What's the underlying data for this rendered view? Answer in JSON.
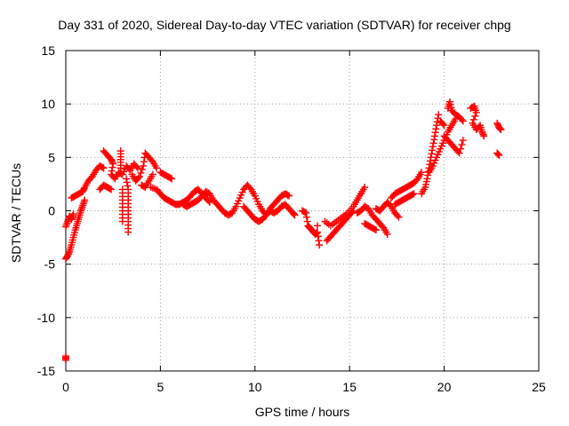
{
  "chart_data": {
    "type": "scatter",
    "title": "Day 331 of 2020, Sidereal Day-to-day VTEC variation (SDTVAR) for receiver chpg",
    "xlabel": "GPS time / hours",
    "ylabel": "SDTVAR / TECUs",
    "xlim": [
      0,
      25
    ],
    "ylim": [
      -15,
      15
    ],
    "xticks": [
      0,
      5,
      10,
      15,
      20,
      25
    ],
    "yticks": [
      -15,
      -10,
      -5,
      0,
      5,
      10,
      15
    ],
    "grid": true,
    "marker": "+",
    "color": "#ff0000",
    "series": [
      {
        "name": "SDTVAR",
        "points": [
          [
            0.0,
            -13.6
          ],
          [
            0.0,
            -14.0
          ],
          [
            0.0,
            -1.5
          ],
          [
            0.1,
            -1.0
          ],
          [
            0.2,
            -0.5
          ],
          [
            0.3,
            -0.8
          ],
          [
            0.4,
            -0.3
          ],
          [
            0.0,
            -4.5
          ],
          [
            0.1,
            -4.2
          ],
          [
            0.2,
            -3.8
          ],
          [
            0.3,
            -3.2
          ],
          [
            0.4,
            -2.5
          ],
          [
            0.5,
            -1.8
          ],
          [
            0.6,
            -1.2
          ],
          [
            0.7,
            -0.6
          ],
          [
            0.8,
            0.0
          ],
          [
            0.9,
            0.5
          ],
          [
            1.0,
            1.0
          ],
          [
            0.3,
            1.2
          ],
          [
            0.5,
            1.4
          ],
          [
            0.7,
            1.6
          ],
          [
            0.9,
            1.8
          ],
          [
            1.0,
            2.2
          ],
          [
            1.2,
            2.8
          ],
          [
            1.4,
            3.2
          ],
          [
            1.6,
            3.8
          ],
          [
            1.8,
            4.2
          ],
          [
            2.0,
            4.0
          ],
          [
            1.8,
            2.0
          ],
          [
            2.0,
            2.4
          ],
          [
            2.2,
            2.2
          ],
          [
            2.4,
            2.0
          ],
          [
            2.0,
            5.6
          ],
          [
            2.2,
            5.2
          ],
          [
            2.4,
            4.8
          ],
          [
            2.5,
            4.4
          ],
          [
            2.4,
            3.4
          ],
          [
            2.6,
            3.0
          ],
          [
            2.8,
            3.6
          ],
          [
            3.0,
            3.4
          ],
          [
            3.2,
            4.2
          ],
          [
            3.4,
            3.8
          ],
          [
            3.6,
            4.4
          ],
          [
            3.8,
            4.0
          ],
          [
            2.9,
            5.6
          ],
          [
            2.9,
            4.8
          ],
          [
            2.9,
            4.0
          ],
          [
            3.0,
            2.0
          ],
          [
            3.0,
            1.0
          ],
          [
            3.0,
            0.0
          ],
          [
            3.0,
            -1.0
          ],
          [
            3.2,
            3.0
          ],
          [
            3.3,
            2.0
          ],
          [
            3.3,
            1.0
          ],
          [
            3.3,
            0.0
          ],
          [
            3.3,
            -1.0
          ],
          [
            3.3,
            -2.0
          ],
          [
            3.5,
            3.4
          ],
          [
            3.7,
            2.8
          ],
          [
            3.9,
            3.2
          ],
          [
            4.1,
            4.2
          ],
          [
            4.2,
            5.4
          ],
          [
            4.4,
            5.0
          ],
          [
            4.6,
            4.6
          ],
          [
            4.8,
            4.0
          ],
          [
            4.0,
            2.4
          ],
          [
            4.2,
            2.2
          ],
          [
            4.4,
            2.8
          ],
          [
            4.6,
            3.4
          ],
          [
            5.0,
            3.6
          ],
          [
            5.2,
            3.4
          ],
          [
            5.4,
            3.2
          ],
          [
            5.6,
            3.0
          ],
          [
            4.5,
            2.2
          ],
          [
            4.8,
            2.0
          ],
          [
            5.0,
            1.6
          ],
          [
            5.2,
            1.2
          ],
          [
            5.4,
            1.0
          ],
          [
            5.6,
            0.8
          ],
          [
            5.8,
            0.6
          ],
          [
            6.0,
            0.6
          ],
          [
            6.2,
            0.8
          ],
          [
            6.4,
            1.0
          ],
          [
            6.6,
            1.4
          ],
          [
            6.8,
            1.8
          ],
          [
            7.0,
            2.0
          ],
          [
            7.2,
            1.6
          ],
          [
            7.4,
            1.2
          ],
          [
            7.6,
            0.8
          ],
          [
            6.2,
            0.6
          ],
          [
            6.4,
            0.4
          ],
          [
            6.6,
            0.6
          ],
          [
            6.8,
            0.8
          ],
          [
            7.0,
            1.0
          ],
          [
            7.2,
            1.4
          ],
          [
            7.4,
            1.8
          ],
          [
            7.6,
            1.6
          ],
          [
            7.8,
            1.0
          ],
          [
            8.0,
            0.6
          ],
          [
            8.2,
            0.2
          ],
          [
            8.4,
            -0.2
          ],
          [
            8.6,
            -0.4
          ],
          [
            8.8,
            -0.2
          ],
          [
            9.0,
            0.4
          ],
          [
            9.2,
            1.2
          ],
          [
            9.4,
            2.0
          ],
          [
            9.6,
            2.4
          ],
          [
            9.8,
            2.0
          ],
          [
            10.0,
            1.4
          ],
          [
            10.2,
            0.6
          ],
          [
            10.4,
            0.0
          ],
          [
            10.6,
            -0.4
          ],
          [
            9.4,
            0.4
          ],
          [
            9.6,
            0.0
          ],
          [
            9.8,
            -0.4
          ],
          [
            10.0,
            -0.8
          ],
          [
            10.2,
            -1.0
          ],
          [
            10.4,
            -0.8
          ],
          [
            10.6,
            -0.4
          ],
          [
            10.8,
            0.2
          ],
          [
            11.0,
            0.6
          ],
          [
            11.2,
            1.0
          ],
          [
            11.4,
            1.4
          ],
          [
            11.6,
            1.6
          ],
          [
            11.8,
            1.4
          ],
          [
            10.8,
            0.0
          ],
          [
            11.0,
            -0.2
          ],
          [
            11.2,
            0.0
          ],
          [
            11.4,
            0.4
          ],
          [
            11.6,
            0.6
          ],
          [
            11.8,
            0.2
          ],
          [
            12.0,
            -0.2
          ],
          [
            12.1,
            -0.4
          ],
          [
            12.5,
            0.0
          ],
          [
            12.7,
            -0.2
          ],
          [
            12.8,
            -1.4
          ],
          [
            12.9,
            -1.6
          ],
          [
            13.0,
            -1.8
          ],
          [
            13.1,
            -2.0
          ],
          [
            13.2,
            -2.2
          ],
          [
            13.3,
            -2.0
          ],
          [
            13.4,
            -3.2
          ],
          [
            13.3,
            -1.4
          ],
          [
            13.8,
            -2.8
          ],
          [
            14.0,
            -2.4
          ],
          [
            14.2,
            -2.0
          ],
          [
            14.4,
            -1.6
          ],
          [
            14.6,
            -1.2
          ],
          [
            14.8,
            -0.8
          ],
          [
            15.0,
            -0.4
          ],
          [
            15.2,
            0.0
          ],
          [
            13.7,
            -1.0
          ],
          [
            14.0,
            -1.4
          ],
          [
            14.3,
            -1.0
          ],
          [
            14.6,
            -0.6
          ],
          [
            14.9,
            -0.2
          ],
          [
            15.2,
            0.4
          ],
          [
            15.4,
            1.0
          ],
          [
            15.6,
            1.6
          ],
          [
            15.8,
            2.2
          ],
          [
            15.4,
            -0.2
          ],
          [
            15.6,
            0.0
          ],
          [
            15.8,
            0.4
          ],
          [
            16.0,
            0.2
          ],
          [
            16.2,
            -0.4
          ],
          [
            16.4,
            -0.8
          ],
          [
            16.6,
            -1.2
          ],
          [
            16.8,
            -1.6
          ],
          [
            17.0,
            -2.2
          ],
          [
            15.8,
            -1.2
          ],
          [
            16.0,
            -1.4
          ],
          [
            16.2,
            -1.6
          ],
          [
            16.4,
            -1.8
          ],
          [
            16.4,
            0.2
          ],
          [
            16.6,
            0.0
          ],
          [
            16.8,
            0.4
          ],
          [
            17.0,
            0.8
          ],
          [
            17.2,
            0.4
          ],
          [
            17.4,
            -0.2
          ],
          [
            17.6,
            -0.6
          ],
          [
            17.2,
            1.2
          ],
          [
            17.4,
            1.6
          ],
          [
            17.6,
            1.8
          ],
          [
            17.8,
            2.0
          ],
          [
            18.0,
            2.2
          ],
          [
            18.2,
            2.4
          ],
          [
            18.4,
            2.6
          ],
          [
            18.6,
            3.0
          ],
          [
            18.8,
            3.6
          ],
          [
            17.4,
            0.6
          ],
          [
            17.6,
            0.8
          ],
          [
            17.8,
            1.0
          ],
          [
            18.0,
            1.2
          ],
          [
            18.2,
            1.4
          ],
          [
            18.4,
            1.6
          ],
          [
            18.8,
            1.6
          ],
          [
            19.0,
            2.2
          ],
          [
            19.1,
            3.0
          ],
          [
            19.2,
            4.0
          ],
          [
            19.3,
            5.0
          ],
          [
            19.4,
            6.0
          ],
          [
            19.5,
            7.0
          ],
          [
            19.6,
            8.0
          ],
          [
            19.7,
            9.0
          ],
          [
            19.2,
            3.6
          ],
          [
            19.4,
            4.2
          ],
          [
            19.6,
            5.0
          ],
          [
            19.8,
            5.8
          ],
          [
            20.0,
            6.6
          ],
          [
            20.2,
            7.4
          ],
          [
            20.4,
            8.0
          ],
          [
            20.6,
            8.6
          ],
          [
            19.8,
            8.4
          ],
          [
            20.0,
            8.0
          ],
          [
            20.2,
            9.6
          ],
          [
            20.3,
            10.2
          ],
          [
            20.4,
            9.4
          ],
          [
            20.6,
            9.0
          ],
          [
            20.8,
            8.8
          ],
          [
            21.0,
            8.4
          ],
          [
            20.0,
            7.0
          ],
          [
            20.2,
            6.6
          ],
          [
            20.4,
            6.2
          ],
          [
            20.6,
            5.8
          ],
          [
            20.8,
            5.4
          ],
          [
            21.0,
            6.6
          ],
          [
            21.4,
            9.6
          ],
          [
            21.6,
            9.8
          ],
          [
            21.7,
            9.2
          ],
          [
            21.5,
            8.2
          ],
          [
            21.7,
            7.6
          ],
          [
            21.9,
            8.0
          ],
          [
            22.0,
            7.4
          ],
          [
            22.1,
            7.0
          ],
          [
            22.8,
            8.2
          ],
          [
            22.9,
            7.8
          ],
          [
            23.0,
            7.6
          ],
          [
            22.8,
            5.4
          ],
          [
            22.9,
            5.2
          ]
        ]
      }
    ]
  }
}
